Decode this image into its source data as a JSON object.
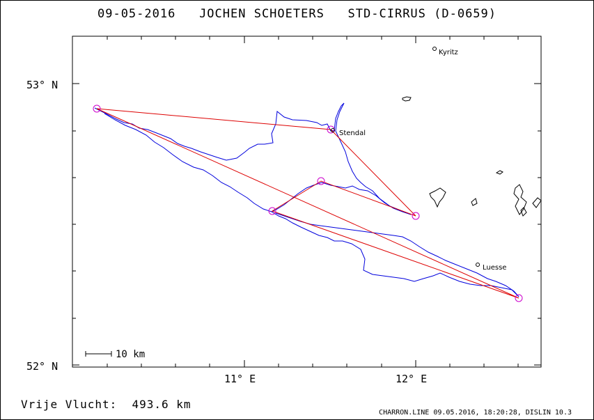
{
  "header": {
    "date": "09-05-2016",
    "pilot": "JOCHEN SCHOETERS",
    "glider": "STD-CIRRUS (D-0659)"
  },
  "map": {
    "lat_labels": [
      "53° N",
      "52° N"
    ],
    "lon_labels": [
      "11° E",
      "12° E"
    ],
    "scale_label": "10 km",
    "places": {
      "kyritz": "Kyritz",
      "stendal": "Stendal",
      "luesse": "Luesse"
    },
    "colors": {
      "track": "#0000dd",
      "task": "#dd0000",
      "turnpoint": "#cc00cc",
      "frame": "#000000"
    }
  },
  "footer": {
    "distance_label": "Vrije Vlucht:",
    "distance_value": "493.6 km",
    "credit": "CHARRON.LINE 09.05.2016, 18:20:28, DISLIN 10.3"
  }
}
